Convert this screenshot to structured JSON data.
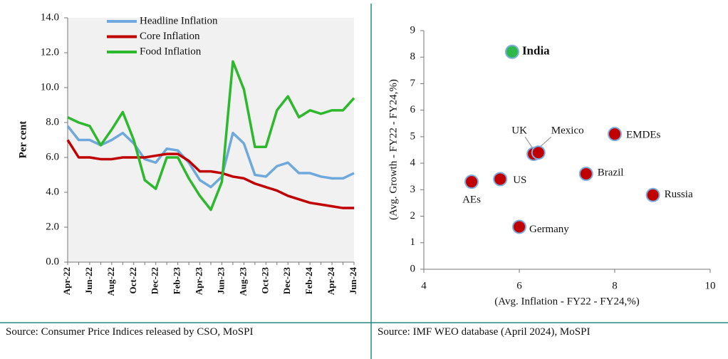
{
  "chart_data": [
    {
      "type": "line",
      "ylabel": "Per cent",
      "categories": [
        "Apr-22",
        null,
        "Jun-22",
        null,
        "Aug-22",
        null,
        "Oct-22",
        null,
        "Dec-22",
        null,
        "Feb-23",
        null,
        "Apr-23",
        null,
        "Jun-23",
        null,
        "Aug-23",
        null,
        "Oct-23",
        null,
        "Dec-23",
        null,
        "Feb-24",
        null,
        "Apr-24",
        null,
        "Jun-24"
      ],
      "series": [
        {
          "name": "Headline Inflation",
          "color": "#6fa8dc",
          "values": [
            7.8,
            7.0,
            7.0,
            6.7,
            7.0,
            7.4,
            6.8,
            5.9,
            5.7,
            6.5,
            6.4,
            5.7,
            4.7,
            4.3,
            4.9,
            7.4,
            6.8,
            5.0,
            4.9,
            5.5,
            5.7,
            5.1,
            5.1,
            4.9,
            4.8,
            4.8,
            5.1
          ]
        },
        {
          "name": "Core Inflation",
          "color": "#c00000",
          "values": [
            7.0,
            6.0,
            6.0,
            5.9,
            5.9,
            6.0,
            6.0,
            6.0,
            6.1,
            6.2,
            6.2,
            5.8,
            5.2,
            5.2,
            5.1,
            4.9,
            4.8,
            4.5,
            4.3,
            4.1,
            3.8,
            3.6,
            3.4,
            3.3,
            3.2,
            3.1,
            3.1
          ]
        },
        {
          "name": "Food Inflation",
          "color": "#2eb82e",
          "values": [
            8.3,
            8.0,
            7.8,
            6.7,
            7.6,
            8.6,
            7.0,
            4.7,
            4.2,
            6.0,
            6.0,
            4.8,
            3.8,
            3.0,
            4.6,
            11.5,
            9.9,
            6.6,
            6.6,
            8.7,
            9.5,
            8.3,
            8.7,
            8.5,
            8.7,
            8.7,
            9.4
          ]
        }
      ],
      "ylim": [
        0,
        14
      ],
      "yticks": [
        {
          "value": 0,
          "label": "0.0"
        },
        {
          "value": 2,
          "label": "2.0"
        },
        {
          "value": 4,
          "label": "4.0"
        },
        {
          "value": 6,
          "label": "6.0"
        },
        {
          "value": 8,
          "label": "8.0"
        },
        {
          "value": 10,
          "label": "10.0"
        },
        {
          "value": 12,
          "label": "12.0"
        },
        {
          "value": 14,
          "label": "14.0"
        }
      ],
      "legend": "upper left",
      "source": "Source: Consumer Price Indices released by CSO, MoSPI"
    },
    {
      "type": "scatter",
      "xlabel": "(Avg. Inflation -  FY22 - FY24,%)",
      "ylabel": "(Avg. Growth - FY22 - FY24,%)",
      "labels": [
        "India",
        "UK",
        "Mexico",
        "EMDEs",
        "Brazil",
        "Russia",
        "Germany",
        "AEs",
        "US"
      ],
      "x": [
        5.85,
        6.3,
        6.4,
        8.0,
        7.4,
        8.8,
        6.0,
        5.0,
        5.6
      ],
      "y": [
        8.2,
        4.35,
        4.4,
        5.1,
        3.6,
        2.8,
        1.6,
        3.3,
        3.4
      ],
      "colors": [
        "#2eb84a",
        "#c00000",
        "#c00000",
        "#c00000",
        "#c00000",
        "#c00000",
        "#c00000",
        "#c00000",
        "#c00000"
      ],
      "bold": [
        true,
        false,
        false,
        false,
        false,
        false,
        false,
        false,
        false
      ],
      "xlim": [
        4,
        10
      ],
      "xticks": [
        4,
        6,
        8,
        10
      ],
      "ylim": [
        0,
        9
      ],
      "yticks": [
        0,
        1,
        2,
        3,
        4,
        5,
        6,
        7,
        8,
        9
      ],
      "source": "Source: IMF WEO database (April 2024), MoSPI"
    }
  ]
}
